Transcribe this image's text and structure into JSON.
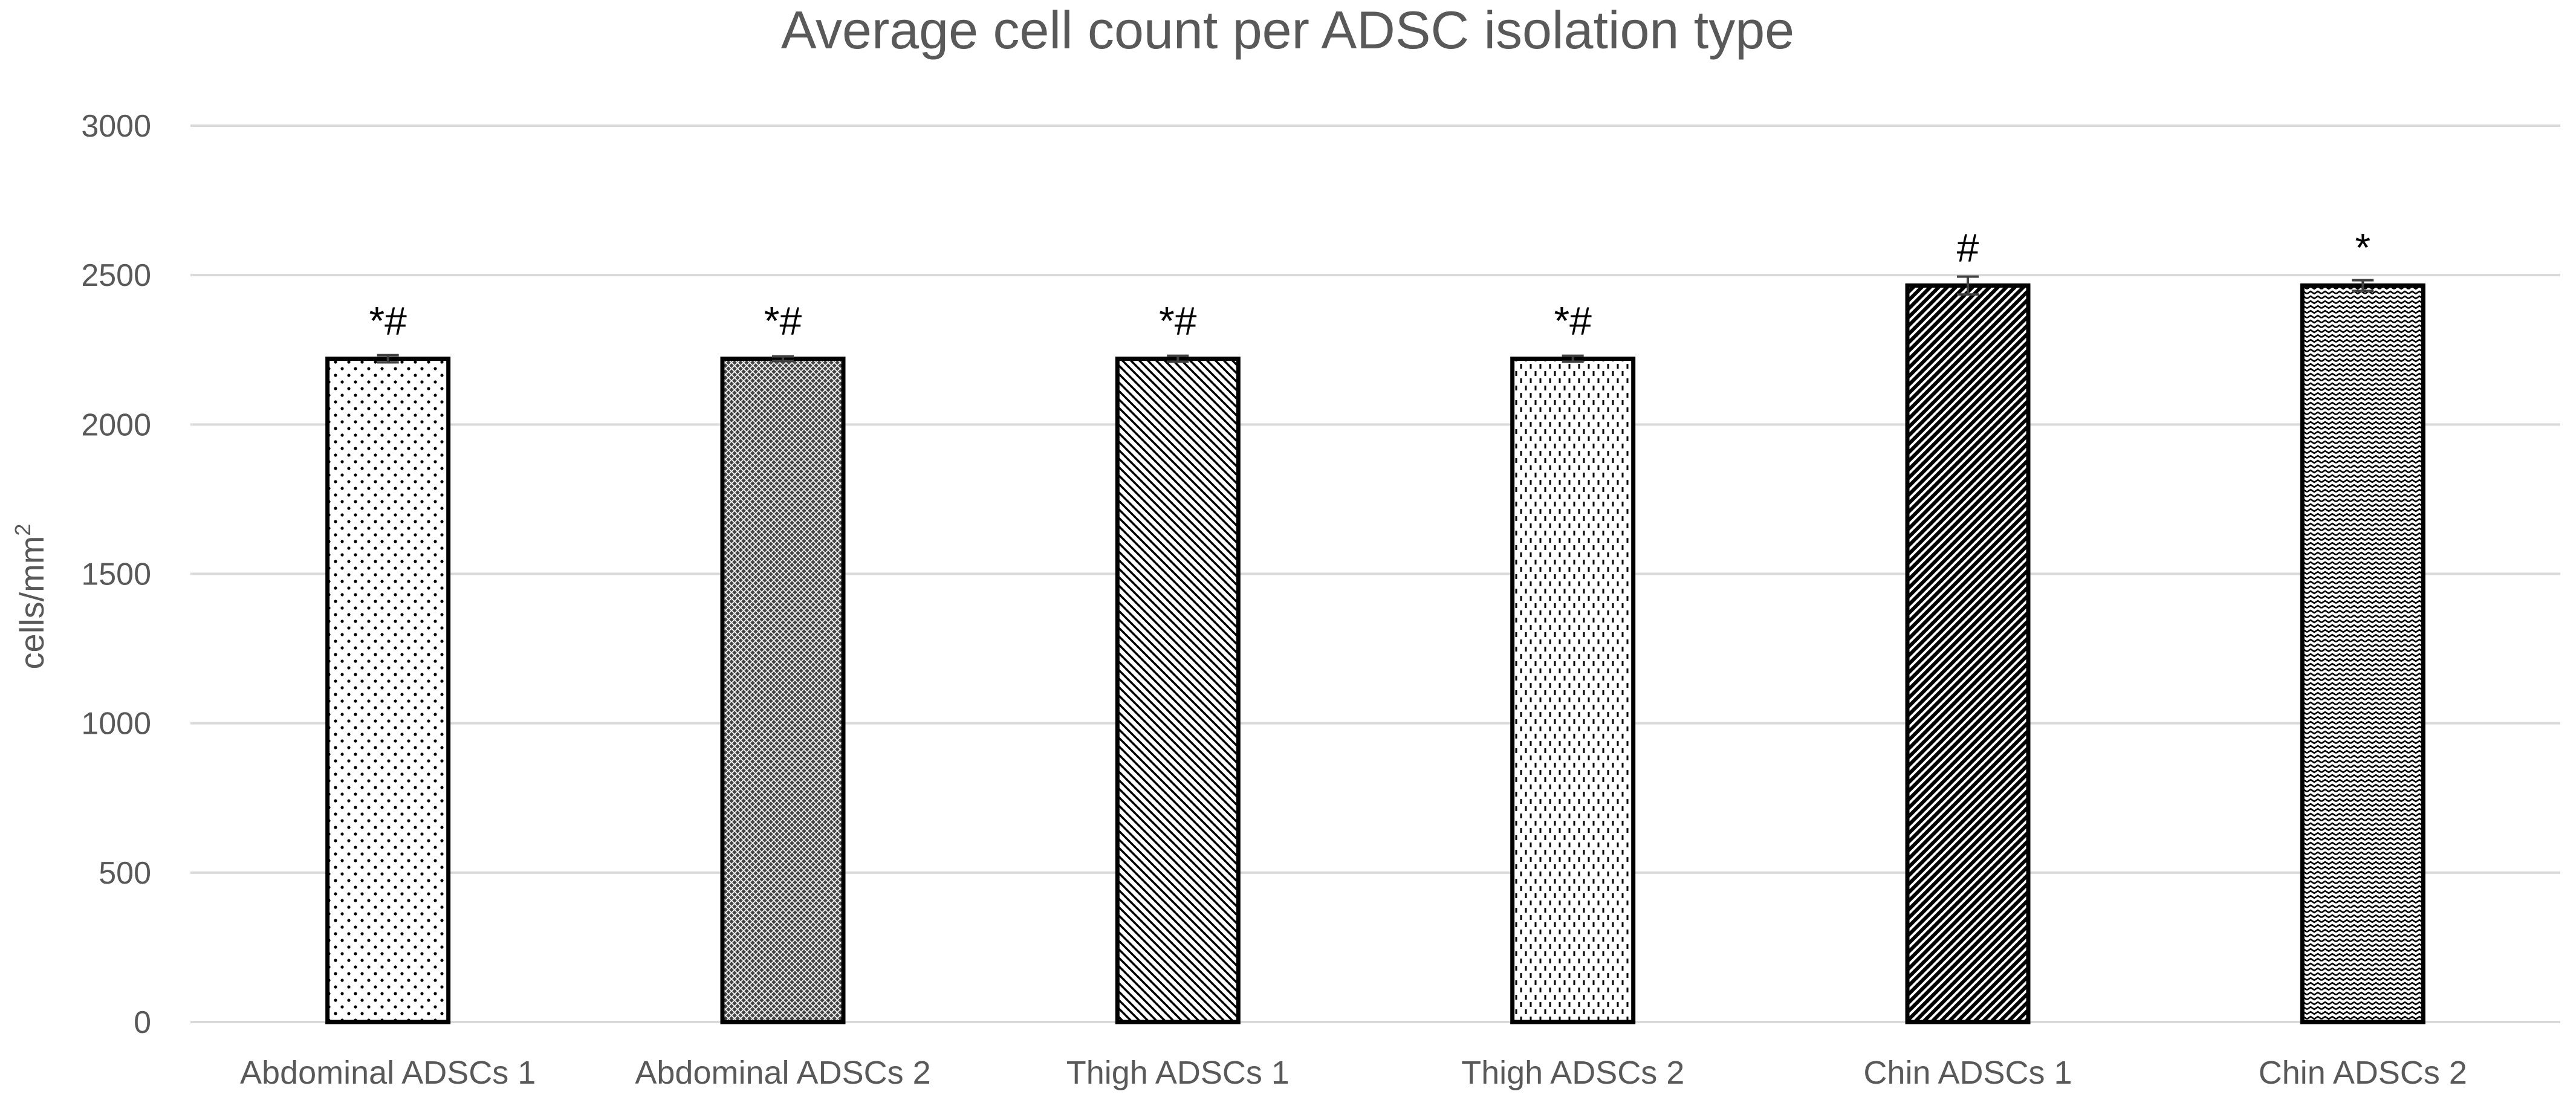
{
  "chart_data": {
    "type": "bar",
    "title": "Average cell count per ADSC isolation type",
    "xlabel": "",
    "ylabel": "cells/mm",
    "ylabel_superscript": "2",
    "ylim": [
      0,
      3000
    ],
    "yticks": [
      0,
      500,
      1000,
      1500,
      2000,
      2500,
      3000
    ],
    "grid": true,
    "legend": "none",
    "categories": [
      "Abdominal ADSCs 1",
      "Abdominal ADSCs 2",
      "Thigh ADSCs 1",
      "Thigh ADSCs 2",
      "Chin ADSCs 1",
      "Chin ADSCs 2"
    ],
    "values": [
      2220,
      2220,
      2220,
      2220,
      2465,
      2465
    ],
    "errors": [
      12,
      8,
      10,
      10,
      30,
      18
    ],
    "annotations": [
      "*#",
      "*#",
      "*#",
      "*#",
      "#",
      "*"
    ],
    "patterns": [
      "dots-sparse",
      "dense-crosshatch",
      "diagonal-stripes",
      "dashes-vertical",
      "bold-diagonal",
      "zigzag"
    ],
    "colors": {
      "axis_text": "#595959",
      "grid": "#d9d9d9",
      "bar_outline": "#000000",
      "bar_fill_base": "#ffffff"
    }
  }
}
